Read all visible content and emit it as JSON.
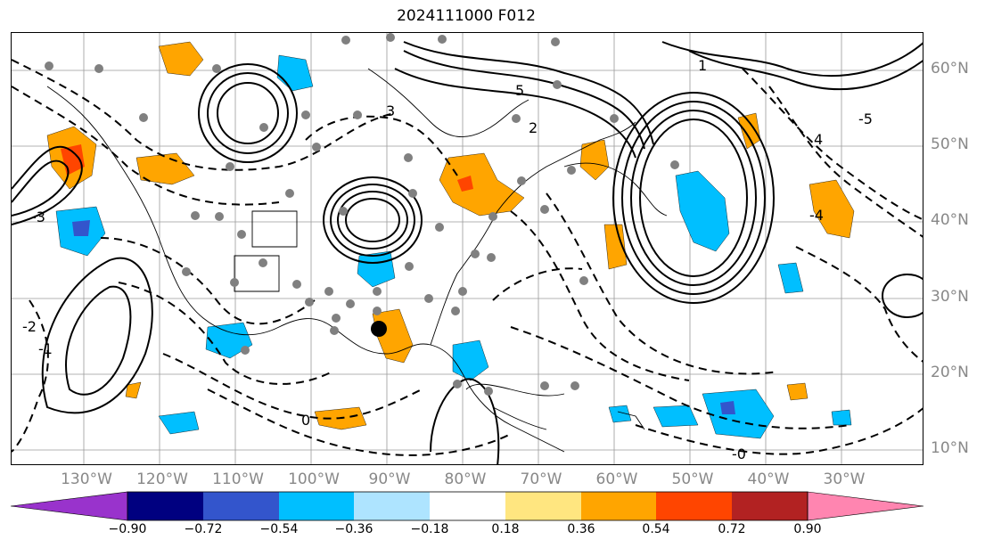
{
  "title": "2024111000 F012",
  "lat_labels": [
    "60°N",
    "50°N",
    "40°N",
    "30°N",
    "20°N",
    "10°N"
  ],
  "lon_labels": [
    "130°W",
    "120°W",
    "110°W",
    "100°W",
    "90°W",
    "80°W",
    "70°W",
    "60°W",
    "50°W",
    "40°W",
    "30°W"
  ],
  "colorbar": {
    "colors": [
      "#9933cc",
      "#000080",
      "#3355cc",
      "#00bfff",
      "#aee4ff",
      "#ffffff",
      "#ffe680",
      "#ffa500",
      "#ff4500",
      "#b22222",
      "#ff85b0"
    ],
    "ticks": [
      "−0.90",
      "−0.72",
      "−0.54",
      "−0.36",
      "−0.18",
      "0.18",
      "0.36",
      "0.54",
      "0.72",
      "0.90"
    ]
  },
  "contour_labels": [
    "5",
    "4",
    "3",
    "2",
    "1",
    "0",
    "-0",
    "-1",
    "-2",
    "-3",
    "-4",
    "-5"
  ],
  "marker_colors": {
    "station": "#808080",
    "center": "#000000"
  }
}
